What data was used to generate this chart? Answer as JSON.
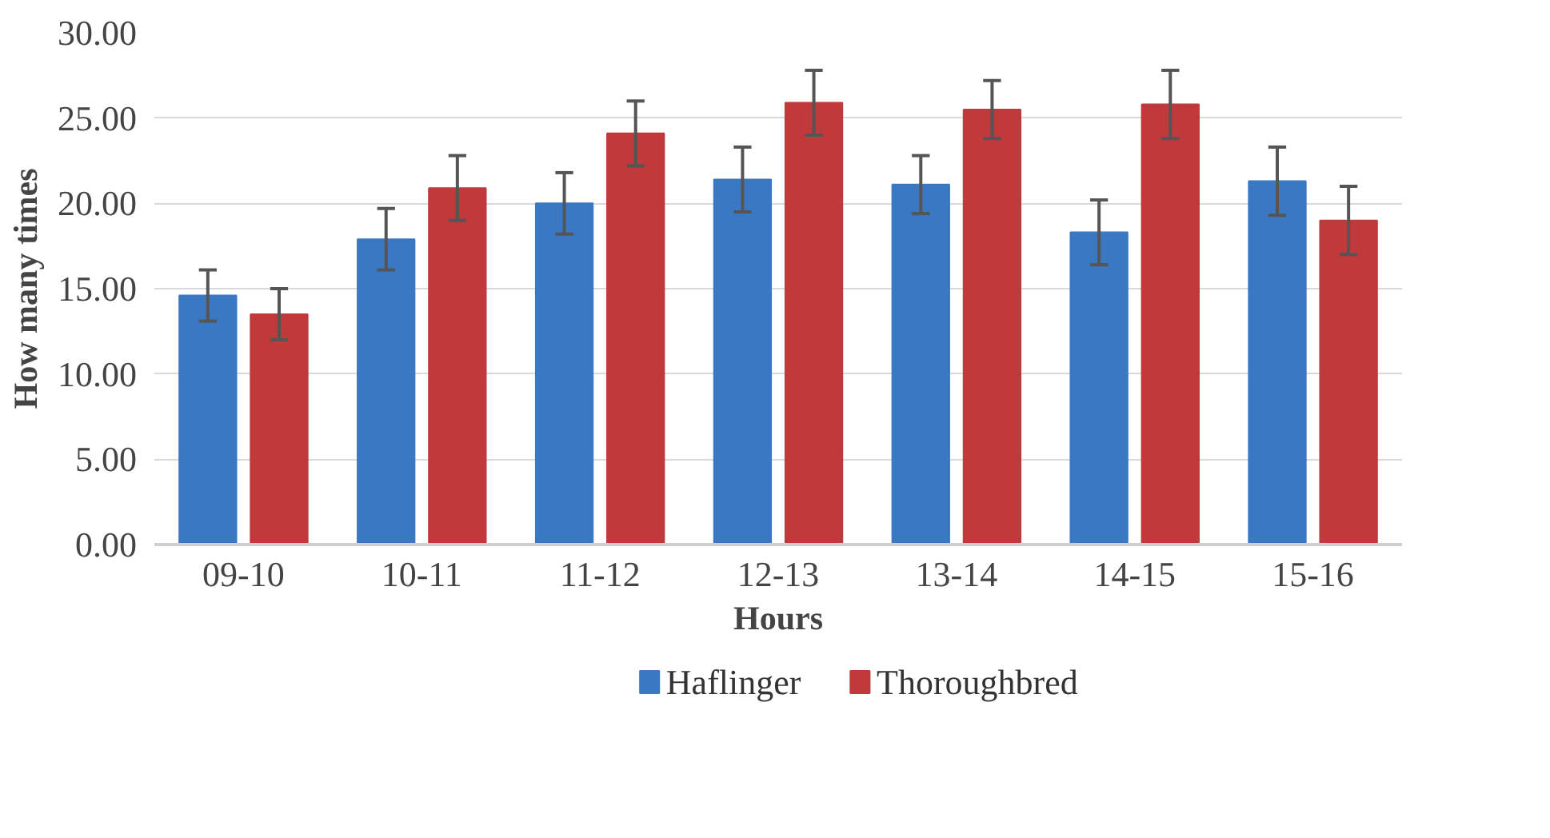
{
  "chart_data": {
    "type": "bar",
    "xlabel": "Hours",
    "ylabel": "How many times",
    "categories": [
      "09-10",
      "10-11",
      "11-12",
      "12-13",
      "13-14",
      "14-15",
      "15-16"
    ],
    "series": [
      {
        "name": "Haflinger",
        "color": "#3a78c4",
        "values": [
          14.6,
          17.9,
          20.0,
          21.4,
          21.1,
          18.3,
          21.3
        ],
        "errors": [
          1.5,
          1.8,
          1.8,
          1.9,
          1.7,
          1.9,
          2.0
        ]
      },
      {
        "name": "Thoroughbred",
        "color": "#c0393b",
        "values": [
          13.5,
          20.9,
          24.1,
          25.9,
          25.5,
          25.8,
          19.0
        ],
        "errors": [
          1.5,
          1.9,
          1.9,
          1.9,
          1.7,
          2.0,
          2.0
        ]
      }
    ],
    "ylim": [
      0,
      30
    ],
    "yticks": [
      {
        "value": 0,
        "label": "0.00"
      },
      {
        "value": 5,
        "label": "5.00"
      },
      {
        "value": 10,
        "label": "10.00"
      },
      {
        "value": 15,
        "label": "15.00"
      },
      {
        "value": 20,
        "label": "20.00"
      },
      {
        "value": 25,
        "label": "25.00"
      },
      {
        "value": 30,
        "label": "30.00"
      }
    ],
    "grid": "y",
    "legend": "bottom"
  }
}
